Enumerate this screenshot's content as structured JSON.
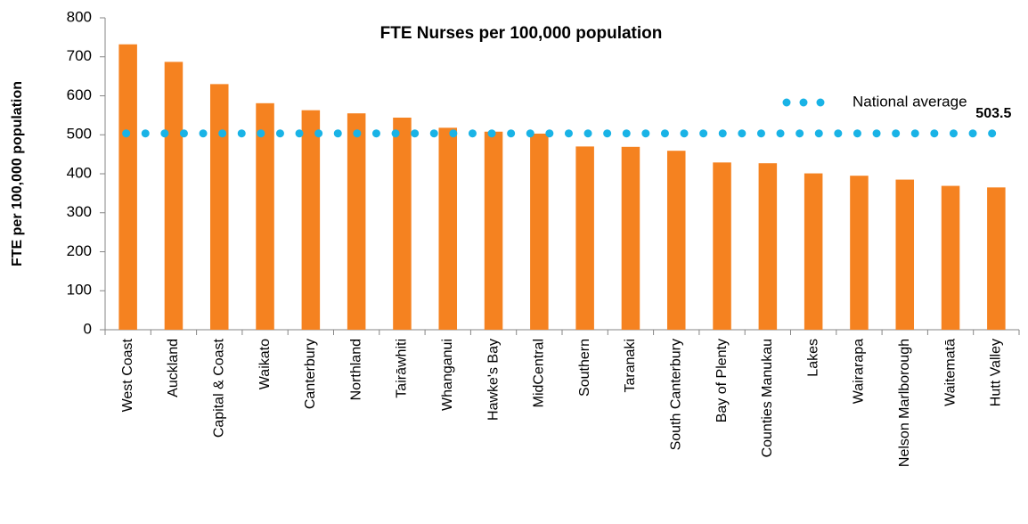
{
  "chart_data": {
    "type": "bar",
    "title": "FTE Nurses per 100,000 population",
    "y_axis_label": "FTE per 100,000 population",
    "categories": [
      "West Coast",
      "Auckland",
      "Capital & Coast",
      "Waikato",
      "Canterbury",
      "Northland",
      "Tairāwhiti",
      "Whanganui",
      "Hawke's Bay",
      "MidCentral",
      "Southern",
      "Taranaki",
      "South Canterbury",
      "Bay of Plenty",
      "Counties Manukau",
      "Lakes",
      "Wairarapa",
      "Nelson Marlborough",
      "Waitematā",
      "Hutt Valley"
    ],
    "series": [
      {
        "type": "bar",
        "color": "#f58220",
        "values": [
          732,
          687,
          630,
          581,
          563,
          555,
          544,
          518,
          508,
          503,
          470,
          469,
          459,
          429,
          427,
          401,
          395,
          385,
          369,
          365
        ]
      },
      {
        "type": "line",
        "name": "National average",
        "color": "#19b3e6",
        "values": [
          503.5,
          503.5,
          503.5,
          503.5,
          503.5,
          503.5,
          503.5,
          503.5,
          503.5,
          503.5,
          503.5,
          503.5,
          503.5,
          503.5,
          503.5,
          503.5,
          503.5,
          503.5,
          503.5,
          503.5
        ]
      }
    ],
    "ylim": [
      0,
      800
    ],
    "yticks": [
      0,
      100,
      200,
      300,
      400,
      500,
      600,
      700,
      800
    ],
    "grid": false,
    "legend": "top-right"
  }
}
